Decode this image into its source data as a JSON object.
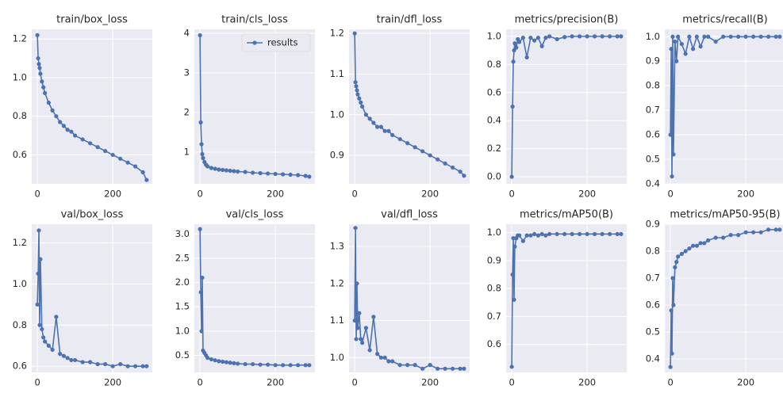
{
  "chart_data": [
    {
      "type": "line",
      "title": "train/box_loss",
      "x": [
        0,
        2,
        4,
        6,
        8,
        12,
        16,
        20,
        30,
        40,
        50,
        60,
        70,
        80,
        90,
        100,
        120,
        140,
        160,
        180,
        200,
        220,
        240,
        260,
        280,
        290
      ],
      "series": [
        {
          "name": "results",
          "color": "#4c72b0",
          "values": [
            1.22,
            1.1,
            1.07,
            1.05,
            1.02,
            0.98,
            0.95,
            0.92,
            0.87,
            0.83,
            0.8,
            0.77,
            0.75,
            0.73,
            0.72,
            0.7,
            0.68,
            0.66,
            0.64,
            0.62,
            0.6,
            0.58,
            0.56,
            0.54,
            0.51,
            0.47
          ]
        }
      ],
      "xlim": [
        -15,
        305
      ],
      "ylim": [
        0.45,
        1.25
      ],
      "xticks": [
        0,
        200
      ],
      "yticks": [
        0.6,
        0.8,
        {
          "value": 1,
          "label": "1.0"
        },
        1.2
      ],
      "grid": true
    },
    {
      "type": "line",
      "title": "train/cls_loss",
      "x": [
        0,
        2,
        4,
        6,
        8,
        12,
        16,
        20,
        30,
        40,
        50,
        60,
        70,
        80,
        90,
        100,
        120,
        140,
        160,
        180,
        200,
        220,
        240,
        260,
        280,
        290
      ],
      "series": [
        {
          "name": "results",
          "color": "#4c72b0",
          "values": [
            3.95,
            1.75,
            1.2,
            0.95,
            0.85,
            0.75,
            0.68,
            0.64,
            0.6,
            0.58,
            0.56,
            0.55,
            0.54,
            0.53,
            0.52,
            0.51,
            0.5,
            0.48,
            0.47,
            0.46,
            0.45,
            0.44,
            0.43,
            0.42,
            0.4,
            0.38
          ]
        }
      ],
      "xlim": [
        -15,
        305
      ],
      "ylim": [
        0.2,
        4.1
      ],
      "xticks": [
        0,
        200
      ],
      "yticks": [
        1,
        2,
        3,
        4
      ],
      "grid": true,
      "legend": "upper right"
    },
    {
      "type": "line",
      "title": "train/dfl_loss",
      "x": [
        0,
        2,
        4,
        6,
        8,
        12,
        16,
        20,
        30,
        40,
        50,
        60,
        70,
        80,
        90,
        100,
        120,
        140,
        160,
        180,
        200,
        220,
        240,
        260,
        280,
        290
      ],
      "series": [
        {
          "name": "results",
          "color": "#4c72b0",
          "values": [
            1.2,
            1.08,
            1.07,
            1.06,
            1.05,
            1.04,
            1.03,
            1.02,
            1.0,
            0.99,
            0.98,
            0.97,
            0.97,
            0.96,
            0.96,
            0.95,
            0.94,
            0.93,
            0.92,
            0.91,
            0.9,
            0.89,
            0.88,
            0.87,
            0.86,
            0.85
          ]
        }
      ],
      "xlim": [
        -15,
        305
      ],
      "ylim": [
        0.83,
        1.21
      ],
      "xticks": [
        0,
        200
      ],
      "yticks": [
        0.9,
        {
          "value": 1,
          "label": "1.0"
        },
        1.1,
        1.2
      ],
      "grid": true
    },
    {
      "type": "line",
      "title": "metrics/precision(B)",
      "x": [
        0,
        2,
        4,
        6,
        8,
        12,
        16,
        20,
        30,
        40,
        50,
        60,
        70,
        80,
        90,
        100,
        120,
        140,
        160,
        180,
        200,
        220,
        240,
        260,
        280,
        290
      ],
      "series": [
        {
          "name": "results",
          "color": "#4c72b0",
          "values": [
            0.0,
            0.5,
            0.82,
            0.9,
            0.95,
            0.92,
            0.98,
            0.96,
            0.99,
            0.85,
            0.99,
            0.97,
            0.99,
            0.93,
            0.99,
            1.0,
            0.98,
            0.995,
            1.0,
            1.0,
            1.0,
            1.0,
            1.0,
            1.0,
            1.0,
            1.0
          ]
        }
      ],
      "xlim": [
        -15,
        305
      ],
      "ylim": [
        -0.05,
        1.05
      ],
      "xticks": [
        0,
        200
      ],
      "yticks": [
        {
          "value": 0,
          "label": "0.0"
        },
        0.2,
        0.4,
        0.6,
        0.8,
        {
          "value": 1,
          "label": "1.0"
        }
      ],
      "grid": true
    },
    {
      "type": "line",
      "title": "metrics/recall(B)",
      "x": [
        0,
        2,
        4,
        6,
        8,
        12,
        16,
        20,
        30,
        40,
        50,
        60,
        70,
        80,
        90,
        100,
        120,
        140,
        160,
        180,
        200,
        220,
        240,
        260,
        280,
        290
      ],
      "series": [
        {
          "name": "results",
          "color": "#4c72b0",
          "values": [
            0.6,
            0.95,
            0.43,
            1.0,
            0.52,
            0.98,
            0.9,
            1.0,
            0.97,
            0.93,
            1.0,
            0.95,
            1.0,
            0.96,
            1.0,
            1.0,
            0.98,
            1.0,
            1.0,
            1.0,
            1.0,
            1.0,
            1.0,
            1.0,
            1.0,
            1.0
          ]
        }
      ],
      "xlim": [
        -15,
        305
      ],
      "ylim": [
        0.4,
        1.03
      ],
      "xticks": [
        0,
        200
      ],
      "yticks": [
        0.4,
        0.5,
        0.6,
        0.7,
        0.8,
        0.9,
        {
          "value": 1,
          "label": "1.0"
        }
      ],
      "grid": true
    },
    {
      "type": "line",
      "title": "val/box_loss",
      "x": [
        0,
        2,
        4,
        6,
        8,
        12,
        16,
        20,
        30,
        40,
        50,
        60,
        70,
        80,
        90,
        100,
        120,
        140,
        160,
        180,
        200,
        220,
        240,
        260,
        280,
        290
      ],
      "series": [
        {
          "name": "results",
          "color": "#4c72b0",
          "values": [
            0.9,
            1.05,
            1.26,
            0.8,
            1.12,
            0.78,
            0.74,
            0.72,
            0.7,
            0.68,
            0.84,
            0.66,
            0.65,
            0.64,
            0.63,
            0.63,
            0.62,
            0.62,
            0.61,
            0.61,
            0.6,
            0.61,
            0.6,
            0.6,
            0.6,
            0.6
          ]
        }
      ],
      "xlim": [
        -15,
        305
      ],
      "ylim": [
        0.57,
        1.29
      ],
      "xticks": [
        0,
        200
      ],
      "yticks": [
        0.6,
        0.8,
        {
          "value": 1,
          "label": "1.0"
        },
        1.2
      ],
      "grid": true
    },
    {
      "type": "line",
      "title": "val/cls_loss",
      "x": [
        0,
        2,
        4,
        6,
        8,
        12,
        16,
        20,
        30,
        40,
        50,
        60,
        70,
        80,
        90,
        100,
        120,
        140,
        160,
        180,
        200,
        220,
        240,
        260,
        280,
        290
      ],
      "series": [
        {
          "name": "results",
          "color": "#4c72b0",
          "values": [
            3.1,
            1.8,
            1.0,
            2.1,
            0.6,
            0.55,
            0.5,
            0.45,
            0.42,
            0.4,
            0.38,
            0.37,
            0.36,
            0.35,
            0.34,
            0.33,
            0.32,
            0.32,
            0.31,
            0.31,
            0.3,
            0.3,
            0.3,
            0.3,
            0.3,
            0.3
          ]
        }
      ],
      "xlim": [
        -15,
        305
      ],
      "ylim": [
        0.15,
        3.2
      ],
      "xticks": [
        0,
        200
      ],
      "yticks": [
        0.5,
        {
          "value": 1,
          "label": "1.0"
        },
        1.5,
        {
          "value": 2,
          "label": "2.0"
        },
        2.5,
        {
          "value": 3,
          "label": "3.0"
        }
      ],
      "grid": true
    },
    {
      "type": "line",
      "title": "val/dfl_loss",
      "x": [
        0,
        2,
        4,
        6,
        8,
        12,
        16,
        20,
        30,
        40,
        50,
        60,
        70,
        80,
        90,
        100,
        120,
        140,
        160,
        180,
        200,
        220,
        240,
        260,
        280,
        290
      ],
      "series": [
        {
          "name": "results",
          "color": "#4c72b0",
          "values": [
            1.1,
            1.35,
            1.05,
            1.2,
            1.08,
            1.12,
            1.05,
            1.04,
            1.08,
            1.02,
            1.11,
            1.01,
            1.0,
            1.0,
            0.99,
            0.99,
            0.98,
            0.98,
            0.98,
            0.97,
            0.98,
            0.97,
            0.97,
            0.97,
            0.97,
            0.97
          ]
        }
      ],
      "xlim": [
        -15,
        305
      ],
      "ylim": [
        0.96,
        1.36
      ],
      "xticks": [
        0,
        200
      ],
      "yticks": [
        {
          "value": 1,
          "label": "1.0"
        },
        1.1,
        1.2,
        1.3
      ],
      "grid": true
    },
    {
      "type": "line",
      "title": "metrics/mAP50(B)",
      "x": [
        0,
        2,
        4,
        6,
        8,
        12,
        16,
        20,
        30,
        40,
        50,
        60,
        70,
        80,
        90,
        100,
        120,
        140,
        160,
        180,
        200,
        220,
        240,
        260,
        280,
        290
      ],
      "series": [
        {
          "name": "results",
          "color": "#4c72b0",
          "values": [
            0.52,
            0.85,
            0.98,
            0.76,
            0.95,
            0.98,
            0.99,
            0.99,
            0.97,
            0.99,
            0.99,
            0.995,
            0.99,
            0.995,
            0.99,
            0.995,
            0.995,
            0.995,
            0.995,
            0.995,
            0.995,
            0.995,
            0.995,
            0.995,
            0.995,
            0.995
          ]
        }
      ],
      "xlim": [
        -15,
        305
      ],
      "ylim": [
        0.5,
        1.03
      ],
      "xticks": [
        0,
        200
      ],
      "yticks": [
        0.6,
        0.7,
        0.8,
        0.9,
        {
          "value": 1,
          "label": "1.0"
        }
      ],
      "grid": true
    },
    {
      "type": "line",
      "title": "metrics/mAP50-95(B)",
      "x": [
        0,
        2,
        4,
        6,
        8,
        12,
        16,
        20,
        30,
        40,
        50,
        60,
        70,
        80,
        90,
        100,
        120,
        140,
        160,
        180,
        200,
        220,
        240,
        260,
        280,
        290
      ],
      "series": [
        {
          "name": "results",
          "color": "#4c72b0",
          "values": [
            0.37,
            0.58,
            0.42,
            0.7,
            0.6,
            0.74,
            0.76,
            0.78,
            0.79,
            0.8,
            0.81,
            0.82,
            0.82,
            0.83,
            0.83,
            0.84,
            0.85,
            0.85,
            0.86,
            0.86,
            0.87,
            0.87,
            0.87,
            0.88,
            0.88,
            0.88
          ]
        }
      ],
      "xlim": [
        -15,
        305
      ],
      "ylim": [
        0.35,
        0.9
      ],
      "xticks": [
        0,
        200
      ],
      "yticks": [
        0.4,
        0.5,
        0.6,
        0.7,
        0.8,
        0.9
      ],
      "grid": true
    }
  ]
}
